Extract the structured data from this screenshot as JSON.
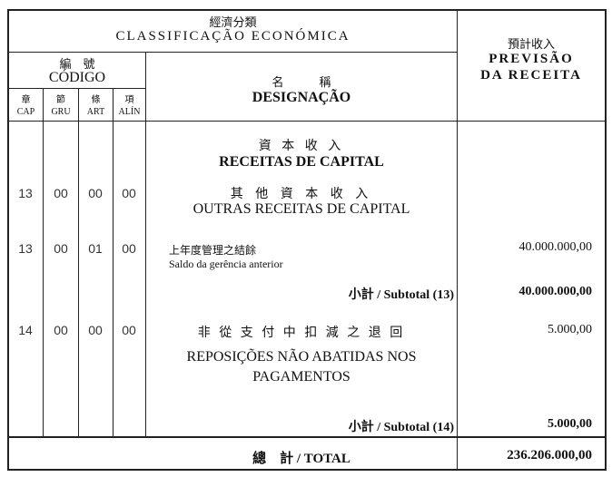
{
  "header": {
    "class_zh": "經濟分類",
    "class_pt": "CLASSIFICAÇÃO ECONÓMICA",
    "code_zh": "編　號",
    "code_pt": "CÓDIGO",
    "name_zh": "名　　　稱",
    "name_pt": "DESIGNAÇÃO",
    "prev_zh": "預計收入",
    "prev_pt1": "PREVISÃO",
    "prev_pt2": "DA RECEITA",
    "cols": [
      {
        "zh": "章",
        "pt": "CAP"
      },
      {
        "zh": "節",
        "pt": "GRU"
      },
      {
        "zh": "條",
        "pt": "ART"
      },
      {
        "zh": "項",
        "pt": "ALÍN"
      }
    ]
  },
  "section": {
    "zh": "資 本 收 入",
    "pt": "RECEITAS DE CAPITAL"
  },
  "rows": [
    {
      "cap": "13",
      "gru": "00",
      "art": "00",
      "alin": "00",
      "zh": "其 他 資 本 收 入",
      "pt": "OUTRAS RECEITAS DE CAPITAL"
    },
    {
      "cap": "13",
      "gru": "00",
      "art": "01",
      "alin": "00",
      "zh": "上年度管理之結餘",
      "pt": "Saldo da gerência anterior",
      "value": "40.000.000,00"
    },
    {
      "cap": "14",
      "gru": "00",
      "art": "00",
      "alin": "00",
      "zh": "非 從 支 付 中 扣 減 之 退 回",
      "pt": "REPOSIÇÕES NÃO ABATIDAS NOS PAGAMENTOS",
      "value": "5.000,00"
    }
  ],
  "subtotals": [
    {
      "label": "小計  /  Subtotal (13)",
      "value": "40.000.000,00"
    },
    {
      "label": "小計  /  Subtotal (14)",
      "value": "5.000,00"
    }
  ],
  "total": {
    "label": "總　計 / TOTAL",
    "value": "236.206.000,00"
  }
}
